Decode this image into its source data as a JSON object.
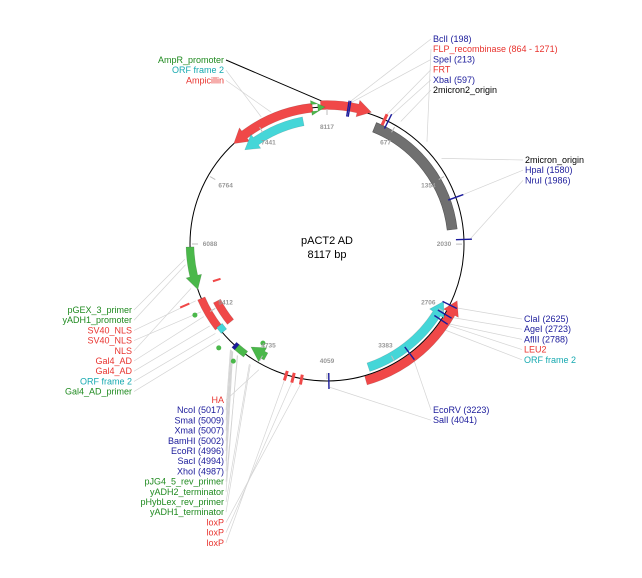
{
  "plasmid": {
    "name": "pACT2 AD",
    "length_label": "8117 bp",
    "length_bp": 8117
  },
  "colors": {
    "enzyme": "#1b1b9b",
    "feature_red": "#e8332e",
    "feature_green": "#1f8a1f",
    "feature_cyan": "#16a9b0",
    "feature_black": "#000000",
    "arc_red": "#f04848",
    "arc_cyan": "#45d6d8",
    "arc_grey": "#707070",
    "arc_green": "#4ab84a"
  },
  "ticks": [
    {
      "bp": 0,
      "label": "8117"
    },
    {
      "bp": 677,
      "label": "677"
    },
    {
      "bp": 1354,
      "label": "1354"
    },
    {
      "bp": 2030,
      "label": "2030"
    },
    {
      "bp": 2706,
      "label": "2706"
    },
    {
      "bp": 3383,
      "label": "3383"
    },
    {
      "bp": 4059,
      "label": "4059"
    },
    {
      "bp": 4735,
      "label": "4735"
    },
    {
      "bp": 5412,
      "label": "5412"
    },
    {
      "bp": 6088,
      "label": "6088"
    },
    {
      "bp": 6764,
      "label": "6764"
    },
    {
      "bp": 7441,
      "label": "7441"
    }
  ],
  "label_groups": {
    "top_left": [
      {
        "text": "AmpR_promoter",
        "color": "#1f8a1f"
      },
      {
        "text": "ORF frame 2",
        "color": "#16a9b0"
      },
      {
        "text": "Ampicillin",
        "color": "#e8332e"
      }
    ],
    "top_right": [
      {
        "text": "BclI (198)",
        "color": "#1b1b9b"
      },
      {
        "text": "FLP_recombinase (864 - 1271)",
        "color": "#e8332e"
      },
      {
        "text": "SpeI (213)",
        "color": "#1b1b9b"
      },
      {
        "text": "FRT",
        "color": "#e8332e"
      },
      {
        "text": "XbaI (597)",
        "color": "#1b1b9b"
      },
      {
        "text": "2micron2_origin",
        "color": "#000000"
      }
    ],
    "right_mid": [
      {
        "text": "2micron_origin",
        "color": "#000000"
      },
      {
        "text": "HpaI (1580)",
        "color": "#1b1b9b"
      },
      {
        "text": "NruI (1986)",
        "color": "#1b1b9b"
      }
    ],
    "right_low": [
      {
        "text": "ClaI (2625)",
        "color": "#1b1b9b"
      },
      {
        "text": "AgeI (2723)",
        "color": "#1b1b9b"
      },
      {
        "text": "AflII (2788)",
        "color": "#1b1b9b"
      },
      {
        "text": "LEU2",
        "color": "#e8332e"
      },
      {
        "text": "ORF frame 2",
        "color": "#16a9b0"
      }
    ],
    "bottom_right": [
      {
        "text": "EcoRV (3223)",
        "color": "#1b1b9b"
      },
      {
        "text": "SalI (4041)",
        "color": "#1b1b9b"
      }
    ],
    "left": [
      {
        "text": "pGEX_3_primer",
        "color": "#1f8a1f"
      },
      {
        "text": "yADH1_promoter",
        "color": "#1f8a1f"
      },
      {
        "text": "SV40_NLS",
        "color": "#e8332e"
      },
      {
        "text": "SV40_NLS",
        "color": "#e8332e"
      },
      {
        "text": "NLS",
        "color": "#e8332e"
      },
      {
        "text": "Gal4_AD",
        "color": "#e8332e"
      },
      {
        "text": "Gal4_AD",
        "color": "#e8332e"
      },
      {
        "text": "ORF frame 2",
        "color": "#16a9b0"
      },
      {
        "text": "Gal4_AD_primer",
        "color": "#1f8a1f"
      }
    ],
    "bottom_left": [
      {
        "text": "HA",
        "color": "#e8332e"
      },
      {
        "text": "NcoI (5017)",
        "color": "#1b1b9b"
      },
      {
        "text": "SmaI (5009)",
        "color": "#1b1b9b"
      },
      {
        "text": "XmaI (5007)",
        "color": "#1b1b9b"
      },
      {
        "text": "BamHI (5002)",
        "color": "#1b1b9b"
      },
      {
        "text": "EcoRI (4996)",
        "color": "#1b1b9b"
      },
      {
        "text": "SacI (4994)",
        "color": "#1b1b9b"
      },
      {
        "text": "XhoI (4987)",
        "color": "#1b1b9b"
      },
      {
        "text": "pJG4_5_rev_primer",
        "color": "#1f8a1f"
      },
      {
        "text": "yADH2_terminator",
        "color": "#1f8a1f"
      },
      {
        "text": "pHybLex_rev_primer",
        "color": "#1f8a1f"
      },
      {
        "text": "yADH1_terminator",
        "color": "#1f8a1f"
      },
      {
        "text": "loxP",
        "color": "#e8332e"
      },
      {
        "text": "loxP",
        "color": "#e8332e"
      },
      {
        "text": "loxP",
        "color": "#e8332e"
      }
    ]
  }
}
